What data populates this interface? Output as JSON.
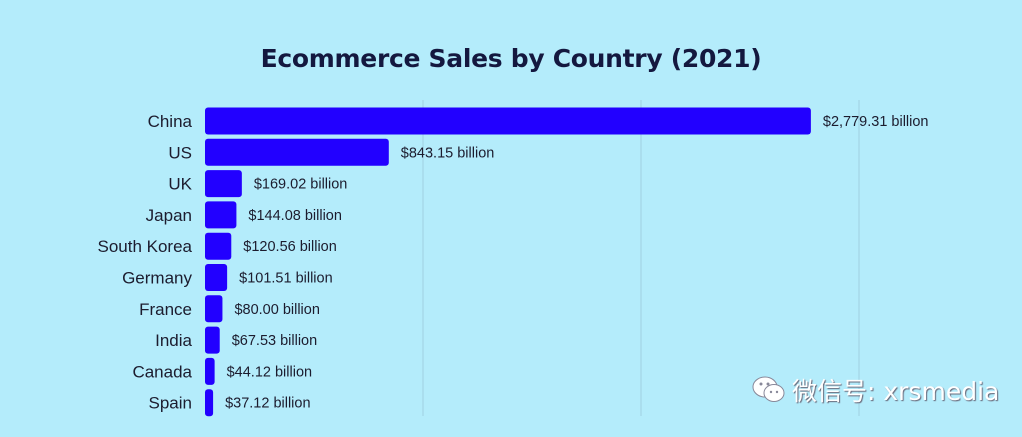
{
  "chart_data": {
    "type": "bar",
    "orientation": "horizontal",
    "title": "Ecommerce Sales by Country (2021)",
    "xlabel": "",
    "ylabel": "",
    "unit": "billion USD",
    "categories": [
      "China",
      "US",
      "UK",
      "Japan",
      "South Korea",
      "Germany",
      "France",
      "India",
      "Canada",
      "Spain"
    ],
    "values": [
      2779.31,
      843.15,
      169.02,
      144.08,
      120.56,
      101.51,
      80.0,
      67.53,
      44.12,
      37.12
    ],
    "labels": [
      "$2,779.31 billion",
      "$843.15 billion",
      "$169.02 billion",
      "$144.08 billion",
      "$120.56 billion",
      "$101.51 billion",
      "$80.00 billion",
      "$67.53 billion",
      "$44.12 billion",
      "$37.12 billion"
    ],
    "xlim": [
      0,
      3000
    ],
    "gridlines": [
      1000,
      2000,
      3000
    ],
    "grid": true,
    "legend": "none",
    "bar_color": "#2200ff"
  },
  "watermark": {
    "text": "微信号: xrsmedia",
    "icon": "wechat-icon"
  }
}
